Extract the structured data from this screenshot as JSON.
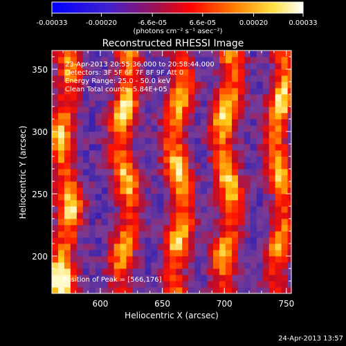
{
  "colorbar": {
    "tick_labels": [
      "-0.00033",
      "-0.00020",
      "-6.6e-05",
      "6.6e-05",
      "0.00020",
      "0.00033"
    ],
    "tick_values": [
      -0.00033,
      -0.0002,
      -6.6e-05,
      6.6e-05,
      0.0002,
      0.00033
    ],
    "range": [
      -0.00033,
      0.00033
    ],
    "unit_label": "(photons cm⁻² s⁻¹ asec⁻²)",
    "colors": [
      "#0000ff",
      "#6020c0",
      "#ff0000",
      "#ff8000",
      "#ffff60",
      "#ffffff"
    ]
  },
  "chart_data": {
    "type": "heatmap",
    "title": "Reconstructed RHESSI Image",
    "xlabel": "Heliocentric X (arcsec)",
    "ylabel": "Heliocentric Y (arcsec)",
    "xlim": [
      561,
      754
    ],
    "ylim": [
      170,
      365
    ],
    "x_ticks": [
      600,
      650,
      700,
      750
    ],
    "y_ticks": [
      200,
      250,
      300,
      350
    ],
    "x_tick_labels": [
      "600",
      "650",
      "700",
      "750"
    ],
    "y_tick_labels": [
      "200",
      "250",
      "300",
      "350"
    ],
    "annotations": [
      "23-Apr-2013 20:55:36.000 to 20:58:44.000",
      "Detectors: 3F 5F 6F 7F 8F 9F  Att 0",
      "Energy Range: 25.0 - 50.0 keV",
      "Clean     Total counts: 5.84E+05"
    ],
    "peak_label": "Position of Peak = [566,176]",
    "peak": [
      566,
      176
    ],
    "stripes": [
      {
        "center_x": 572,
        "peak_y": 240
      },
      {
        "center_x": 620,
        "peak_y": 320
      },
      {
        "center_x": 663,
        "peak_y": 260
      },
      {
        "center_x": 702,
        "peak_y": 305
      },
      {
        "center_x": 745,
        "peak_y": 320
      }
    ]
  },
  "footer": {
    "date": "24-Apr-2013 13:57"
  }
}
